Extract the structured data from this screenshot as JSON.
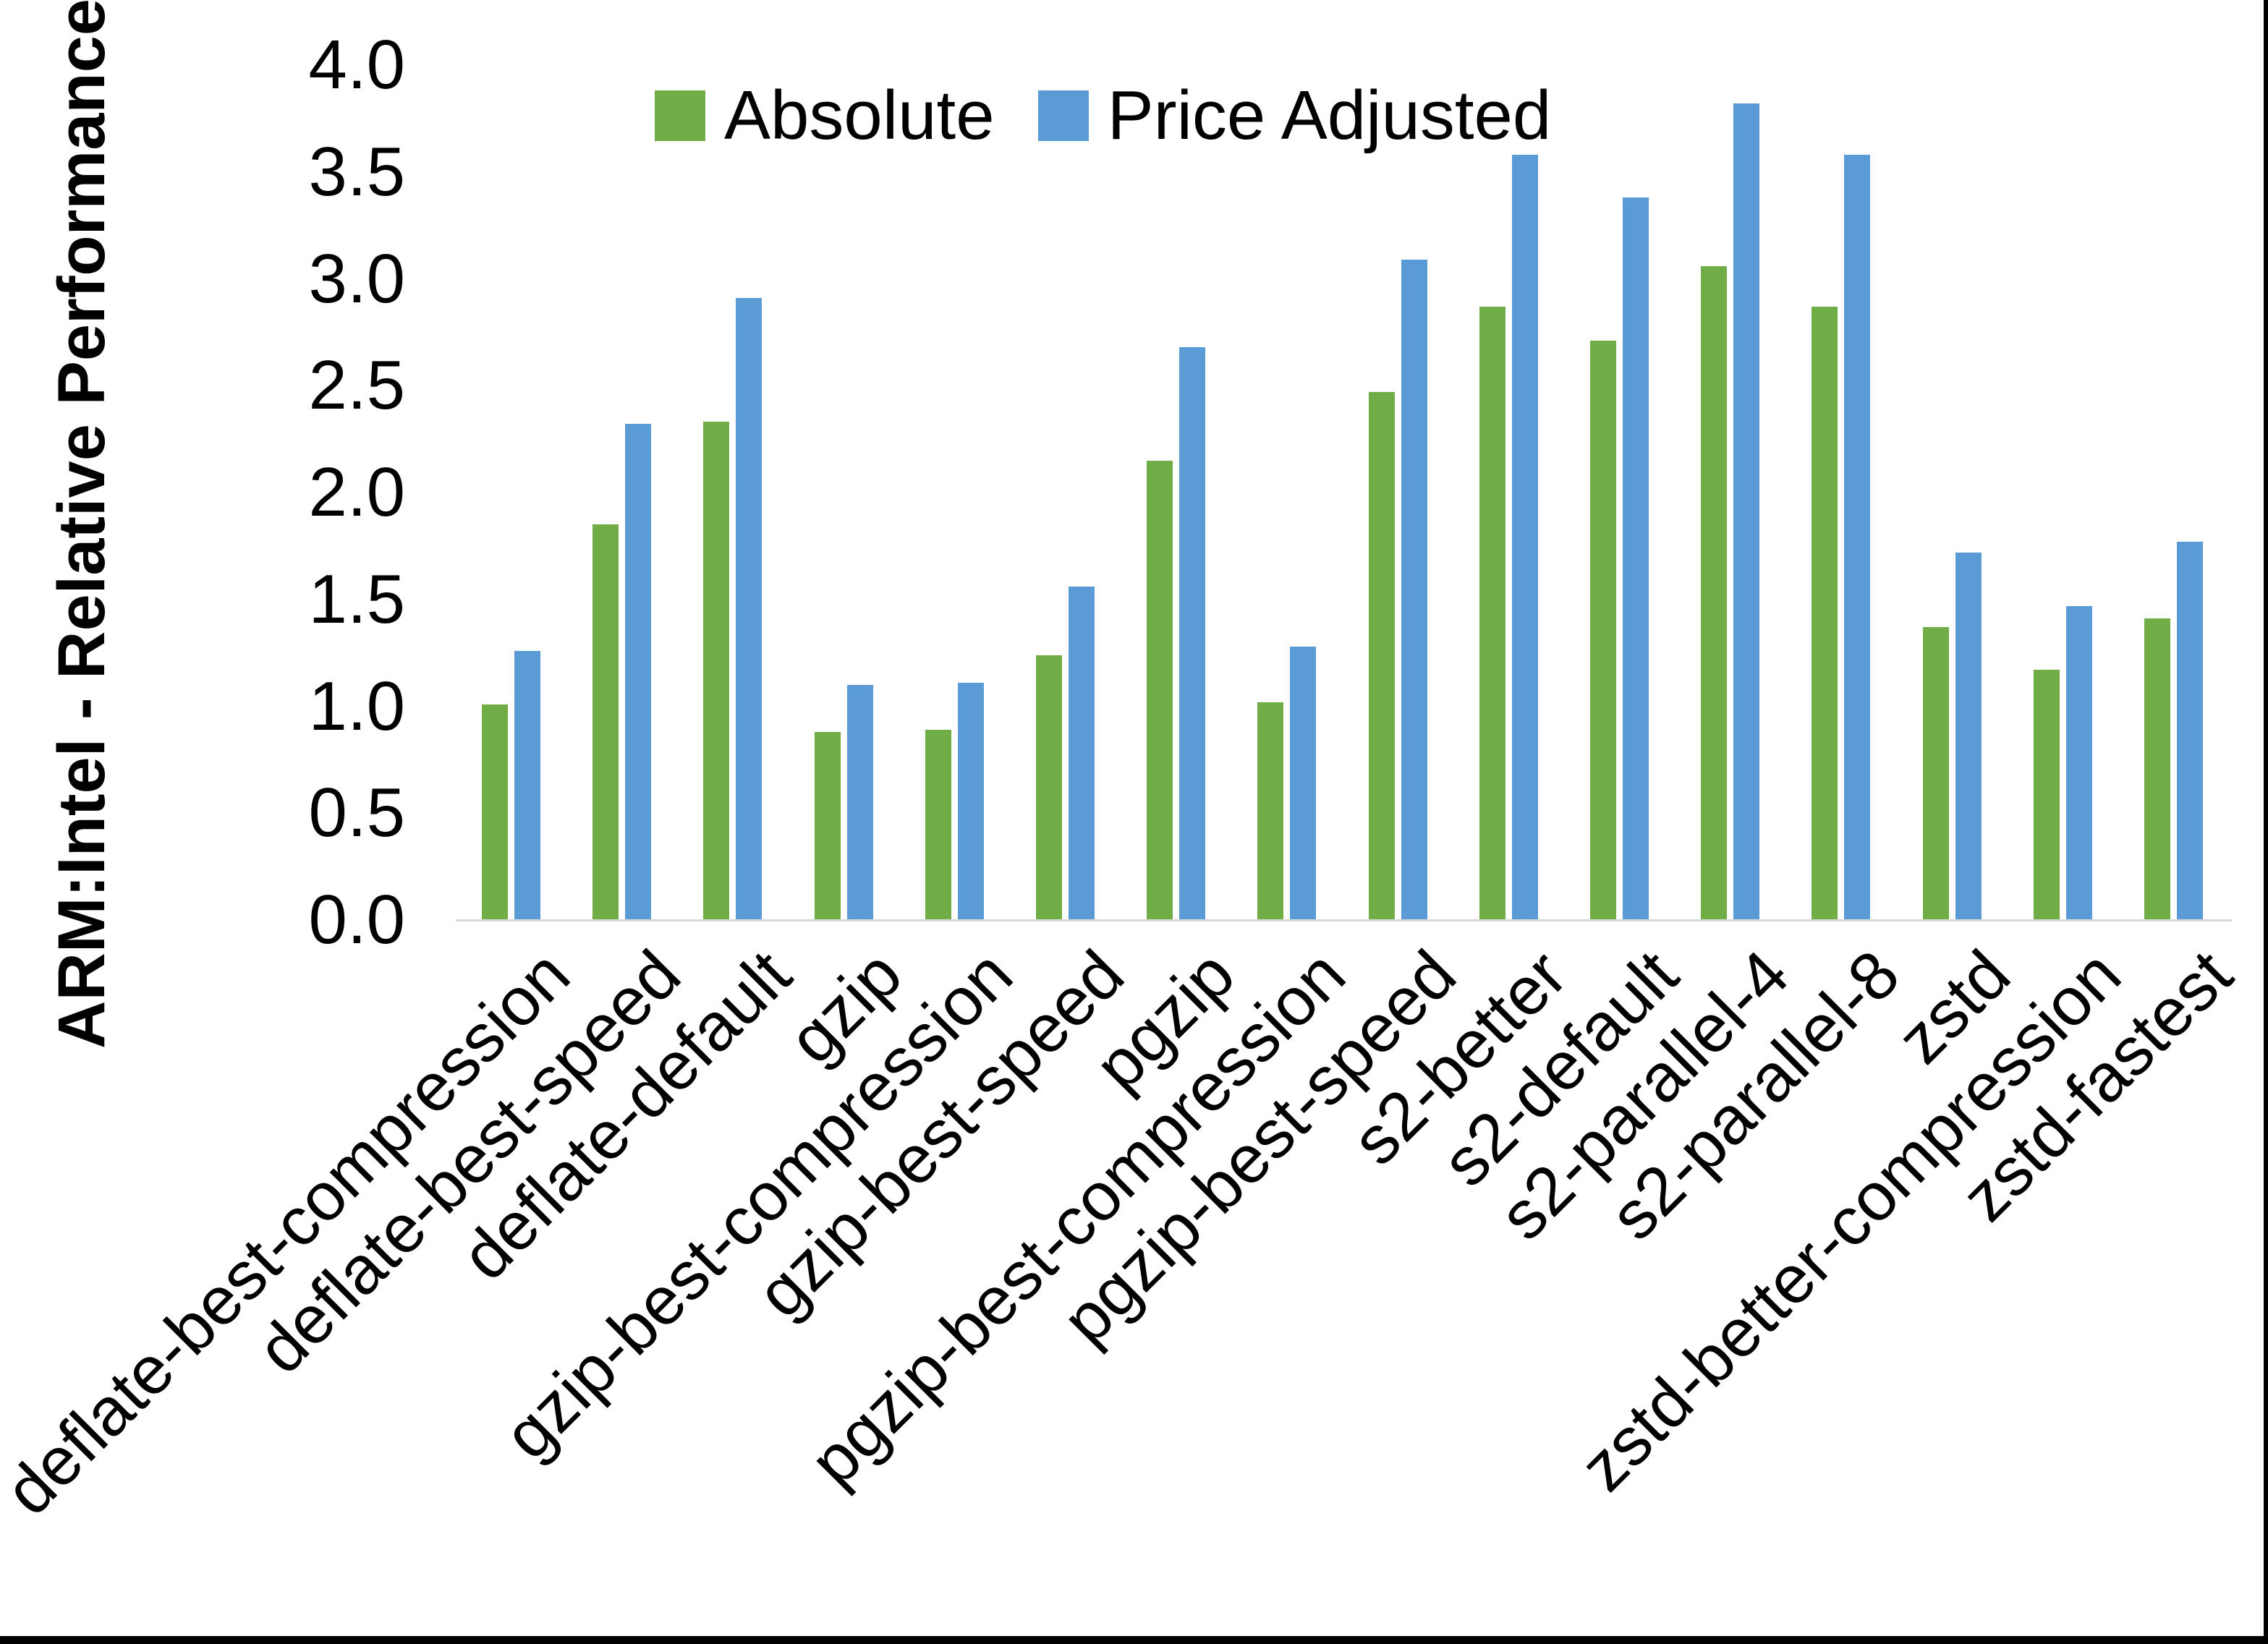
{
  "y_axis": {
    "title": "ARM:Intel - Relative Performance",
    "tick_labels": [
      "0.0",
      "0.5",
      "1.0",
      "1.5",
      "2.0",
      "2.5",
      "3.0",
      "3.5",
      "4.0"
    ],
    "min": 0.0,
    "max": 4.0,
    "step": 0.5
  },
  "legend": {
    "items": [
      {
        "label": "Absolute",
        "color": "#70AD47"
      },
      {
        "label": "Price Adjusted",
        "color": "#5B9BD5"
      }
    ],
    "position": "top-center"
  },
  "chart_data": {
    "type": "bar",
    "title": "",
    "xlabel": "",
    "ylabel": "ARM:Intel - Relative Performance",
    "ylim": [
      0.0,
      4.0
    ],
    "grid": false,
    "legend_position": "top",
    "categories": [
      "deflate-best-compression",
      "deflate-best-speed",
      "deflate-default",
      "gzip",
      "gzip-best-compression",
      "gzip-best-speed",
      "pgzip",
      "pgzip-best-compression",
      "pgzip-best-speed",
      "s2-better",
      "s2-default",
      "s2-parallel-4",
      "s2-parallel-8",
      "zstd",
      "zstd-better-compression",
      "zstd-fastest"
    ],
    "series": [
      {
        "name": "Absolute",
        "color": "#70AD47",
        "values": [
          1.01,
          1.85,
          2.33,
          0.88,
          0.89,
          1.24,
          2.15,
          1.02,
          2.47,
          2.87,
          2.71,
          3.06,
          2.87,
          1.37,
          1.17,
          1.41
        ]
      },
      {
        "name": "Price Adjusted",
        "color": "#5B9BD5",
        "values": [
          1.26,
          2.32,
          2.91,
          1.1,
          1.11,
          1.56,
          2.68,
          1.28,
          3.09,
          3.58,
          3.38,
          3.82,
          3.58,
          1.72,
          1.47,
          1.77
        ]
      }
    ],
    "colors": {
      "axis_line": "#d9d9d9",
      "text": "#000000",
      "background": "#ffffff"
    }
  }
}
